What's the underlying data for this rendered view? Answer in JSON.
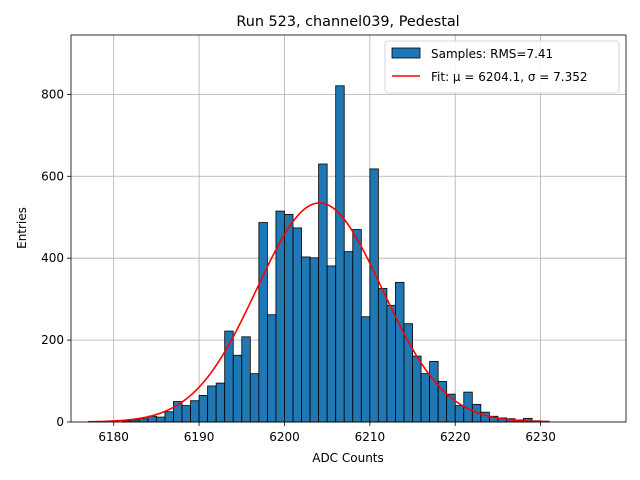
{
  "chart_data": {
    "type": "bar",
    "title": "Run 523, channel039, Pedestal",
    "xlabel": "ADC Counts",
    "ylabel": "Entries",
    "xlim": [
      6175,
      6240
    ],
    "ylim": [
      0,
      945
    ],
    "xticks": [
      6180,
      6190,
      6200,
      6210,
      6220,
      6230
    ],
    "yticks": [
      0,
      200,
      400,
      600,
      800
    ],
    "grid": true,
    "legend_position": "top-right",
    "bar_color": "#1f77b4",
    "bar_edge_color": "#000000",
    "fit_color": "#ff0000",
    "series": [
      {
        "name": "Samples: RMS=7.41",
        "kind": "histogram",
        "bin_width": 1,
        "bin_start": 6181,
        "values": [
          3,
          5,
          8,
          14,
          12,
          25,
          50,
          40,
          52,
          65,
          88,
          95,
          222,
          163,
          208,
          118,
          487,
          262,
          515,
          507,
          474,
          403,
          401,
          630,
          381,
          821,
          416,
          470,
          257,
          618,
          326,
          285,
          341,
          240,
          161,
          118,
          148,
          99,
          68,
          40,
          73,
          43,
          24,
          14,
          10,
          8,
          5,
          9,
          3,
          2
        ]
      },
      {
        "name": "Fit: μ = 6204.1, σ = 7.352",
        "kind": "gaussian",
        "mu": 6204.1,
        "sigma": 7.352,
        "amplitude": 535,
        "x_range": [
          6177,
          6231
        ]
      }
    ],
    "legend": [
      {
        "label": "Samples: RMS=7.41"
      },
      {
        "label": "Fit: μ = 6204.1, σ = 7.352"
      }
    ]
  }
}
